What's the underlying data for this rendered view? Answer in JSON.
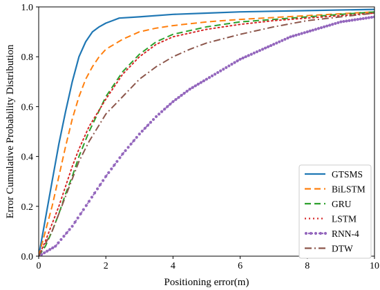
{
  "chart_data": {
    "type": "line",
    "title": "",
    "xlabel": "Positioning error(m)",
    "ylabel": "Error Cumulative Probability Distribution",
    "xlim": [
      0,
      10
    ],
    "ylim": [
      0,
      1.0
    ],
    "xticks": [
      "0",
      "2",
      "4",
      "6",
      "8",
      "10"
    ],
    "yticks": [
      "0.0",
      "0.2",
      "0.4",
      "0.6",
      "0.8",
      "1.0"
    ],
    "grid": false,
    "legend_position": "bottom-right",
    "series": [
      {
        "name": "GTSMS",
        "color": "#1f77b4",
        "style": "solid",
        "x": [
          0,
          0.2,
          0.4,
          0.6,
          0.8,
          1.0,
          1.2,
          1.4,
          1.6,
          1.8,
          2.0,
          2.2,
          2.4,
          3.0,
          4.0,
          5.0,
          6.0,
          8.0,
          10.0
        ],
        "y": [
          0,
          0.15,
          0.3,
          0.45,
          0.58,
          0.7,
          0.8,
          0.86,
          0.9,
          0.92,
          0.935,
          0.945,
          0.955,
          0.96,
          0.97,
          0.975,
          0.98,
          0.985,
          0.99
        ]
      },
      {
        "name": "BiLSTM",
        "color": "#ff7f0e",
        "style": "dashed",
        "x": [
          0,
          0.2,
          0.4,
          0.6,
          0.8,
          1.0,
          1.2,
          1.4,
          1.6,
          1.8,
          2.0,
          2.5,
          3.0,
          3.5,
          4.0,
          5.0,
          6.0,
          8.0,
          10.0
        ],
        "y": [
          0,
          0.1,
          0.2,
          0.32,
          0.44,
          0.55,
          0.64,
          0.71,
          0.76,
          0.8,
          0.83,
          0.87,
          0.9,
          0.915,
          0.925,
          0.94,
          0.95,
          0.965,
          0.98
        ]
      },
      {
        "name": "GRU",
        "color": "#2ca02c",
        "style": "dashed",
        "x": [
          0,
          0.2,
          0.4,
          0.6,
          0.8,
          1.0,
          1.2,
          1.5,
          2.0,
          2.5,
          3.0,
          3.5,
          4.0,
          5.0,
          6.0,
          7.0,
          8.0,
          9.0,
          10.0
        ],
        "y": [
          0,
          0.04,
          0.1,
          0.17,
          0.25,
          0.32,
          0.4,
          0.5,
          0.64,
          0.74,
          0.81,
          0.86,
          0.89,
          0.92,
          0.94,
          0.95,
          0.96,
          0.97,
          0.98
        ]
      },
      {
        "name": "LSTM",
        "color": "#d62728",
        "style": "dotted",
        "x": [
          0,
          0.2,
          0.4,
          0.6,
          0.8,
          1.0,
          1.2,
          1.5,
          2.0,
          2.5,
          3.0,
          3.5,
          4.0,
          5.0,
          6.0,
          7.0,
          8.0,
          9.0,
          10.0
        ],
        "y": [
          0,
          0.06,
          0.13,
          0.2,
          0.28,
          0.36,
          0.43,
          0.52,
          0.63,
          0.73,
          0.8,
          0.85,
          0.88,
          0.91,
          0.93,
          0.945,
          0.955,
          0.965,
          0.975
        ]
      },
      {
        "name": "RNN-4",
        "color": "#9467bd",
        "style": "dotted-markers",
        "x": [
          0,
          0.5,
          1.0,
          1.5,
          2.0,
          2.5,
          3.0,
          3.5,
          4.0,
          4.5,
          5.0,
          5.5,
          6.0,
          6.5,
          7.0,
          7.5,
          8.0,
          8.5,
          9.0,
          9.5,
          10.0
        ],
        "y": [
          0,
          0.04,
          0.12,
          0.22,
          0.32,
          0.41,
          0.49,
          0.56,
          0.62,
          0.67,
          0.71,
          0.75,
          0.79,
          0.82,
          0.85,
          0.88,
          0.9,
          0.92,
          0.94,
          0.95,
          0.96
        ]
      },
      {
        "name": "DTW",
        "color": "#8c564b",
        "style": "dashdot",
        "x": [
          0,
          0.2,
          0.4,
          0.6,
          0.8,
          1.0,
          1.2,
          1.5,
          2.0,
          2.5,
          3.0,
          3.5,
          4.0,
          4.5,
          5.0,
          6.0,
          7.0,
          8.0,
          9.0,
          10.0
        ],
        "y": [
          0,
          0.05,
          0.1,
          0.17,
          0.24,
          0.31,
          0.38,
          0.46,
          0.57,
          0.64,
          0.71,
          0.76,
          0.8,
          0.83,
          0.855,
          0.89,
          0.92,
          0.945,
          0.96,
          0.975
        ]
      }
    ]
  }
}
